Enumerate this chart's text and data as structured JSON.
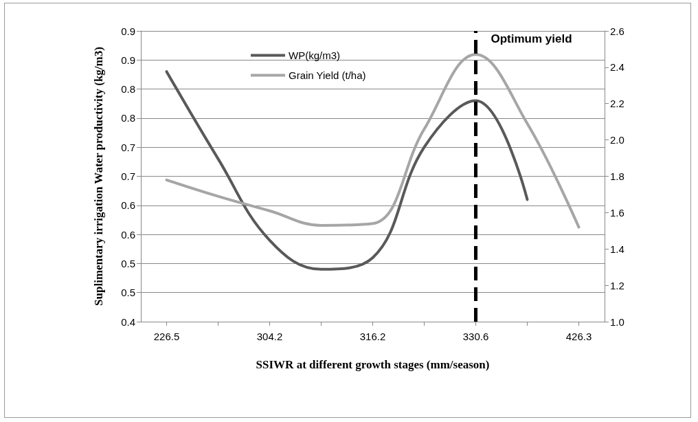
{
  "chart_data": {
    "type": "line",
    "xlabel": "SSIWR at different growth stages (mm/season)",
    "ylabel": "Suplimentary irrigation Water productivity (kg/m3)",
    "categories": [
      "226.5",
      null,
      "304.2",
      null,
      "316.2",
      null,
      "330.6",
      null,
      "426.3"
    ],
    "series": [
      {
        "name": "WP(kg/m3)",
        "color": "#595959",
        "values": [
          0.83,
          0.68,
          0.54,
          0.49,
          0.51,
          0.7,
          0.78,
          0.61,
          null
        ]
      },
      {
        "name": "Grain Yield (t/ha)",
        "color": "#a6a6a6",
        "axis": "y2",
        "values": [
          1.78,
          1.69,
          1.61,
          1.53,
          1.54,
          2.06,
          2.47,
          2.09,
          1.52
        ]
      }
    ],
    "ylim": [
      0.4,
      0.9
    ],
    "yticks": [
      {
        "value": 0.4,
        "label": "0.4"
      },
      {
        "value": 0.45,
        "label": "0.5"
      },
      {
        "value": 0.5,
        "label": "0.5"
      },
      {
        "value": 0.55,
        "label": "0.6"
      },
      {
        "value": 0.6,
        "label": "0.6"
      },
      {
        "value": 0.65,
        "label": "0.7"
      },
      {
        "value": 0.7,
        "label": "0.7"
      },
      {
        "value": 0.75,
        "label": "0.8"
      },
      {
        "value": 0.8,
        "label": "0.8"
      },
      {
        "value": 0.85,
        "label": "0.9"
      },
      {
        "value": 0.9,
        "label": "0.9"
      }
    ],
    "y2lim": [
      1.0,
      2.6
    ],
    "y2ticks": [
      {
        "value": 1.0,
        "label": "1.0"
      },
      {
        "value": 1.2,
        "label": "1.2"
      },
      {
        "value": 1.4,
        "label": "1.4"
      },
      {
        "value": 1.6,
        "label": "1.6"
      },
      {
        "value": 1.8,
        "label": "1.8"
      },
      {
        "value": 2.0,
        "label": "2.0"
      },
      {
        "value": 2.2,
        "label": "2.2"
      },
      {
        "value": 2.4,
        "label": "2.4"
      },
      {
        "value": 2.6,
        "label": "2.6"
      }
    ],
    "ref_lines": [
      {
        "axis": "x",
        "value": "330.6",
        "label": "Optimum yield",
        "color": "#000000",
        "line_style": "dashed"
      }
    ],
    "grid": "y",
    "legend": "top left",
    "marker": "none",
    "line_style": "solid"
  }
}
